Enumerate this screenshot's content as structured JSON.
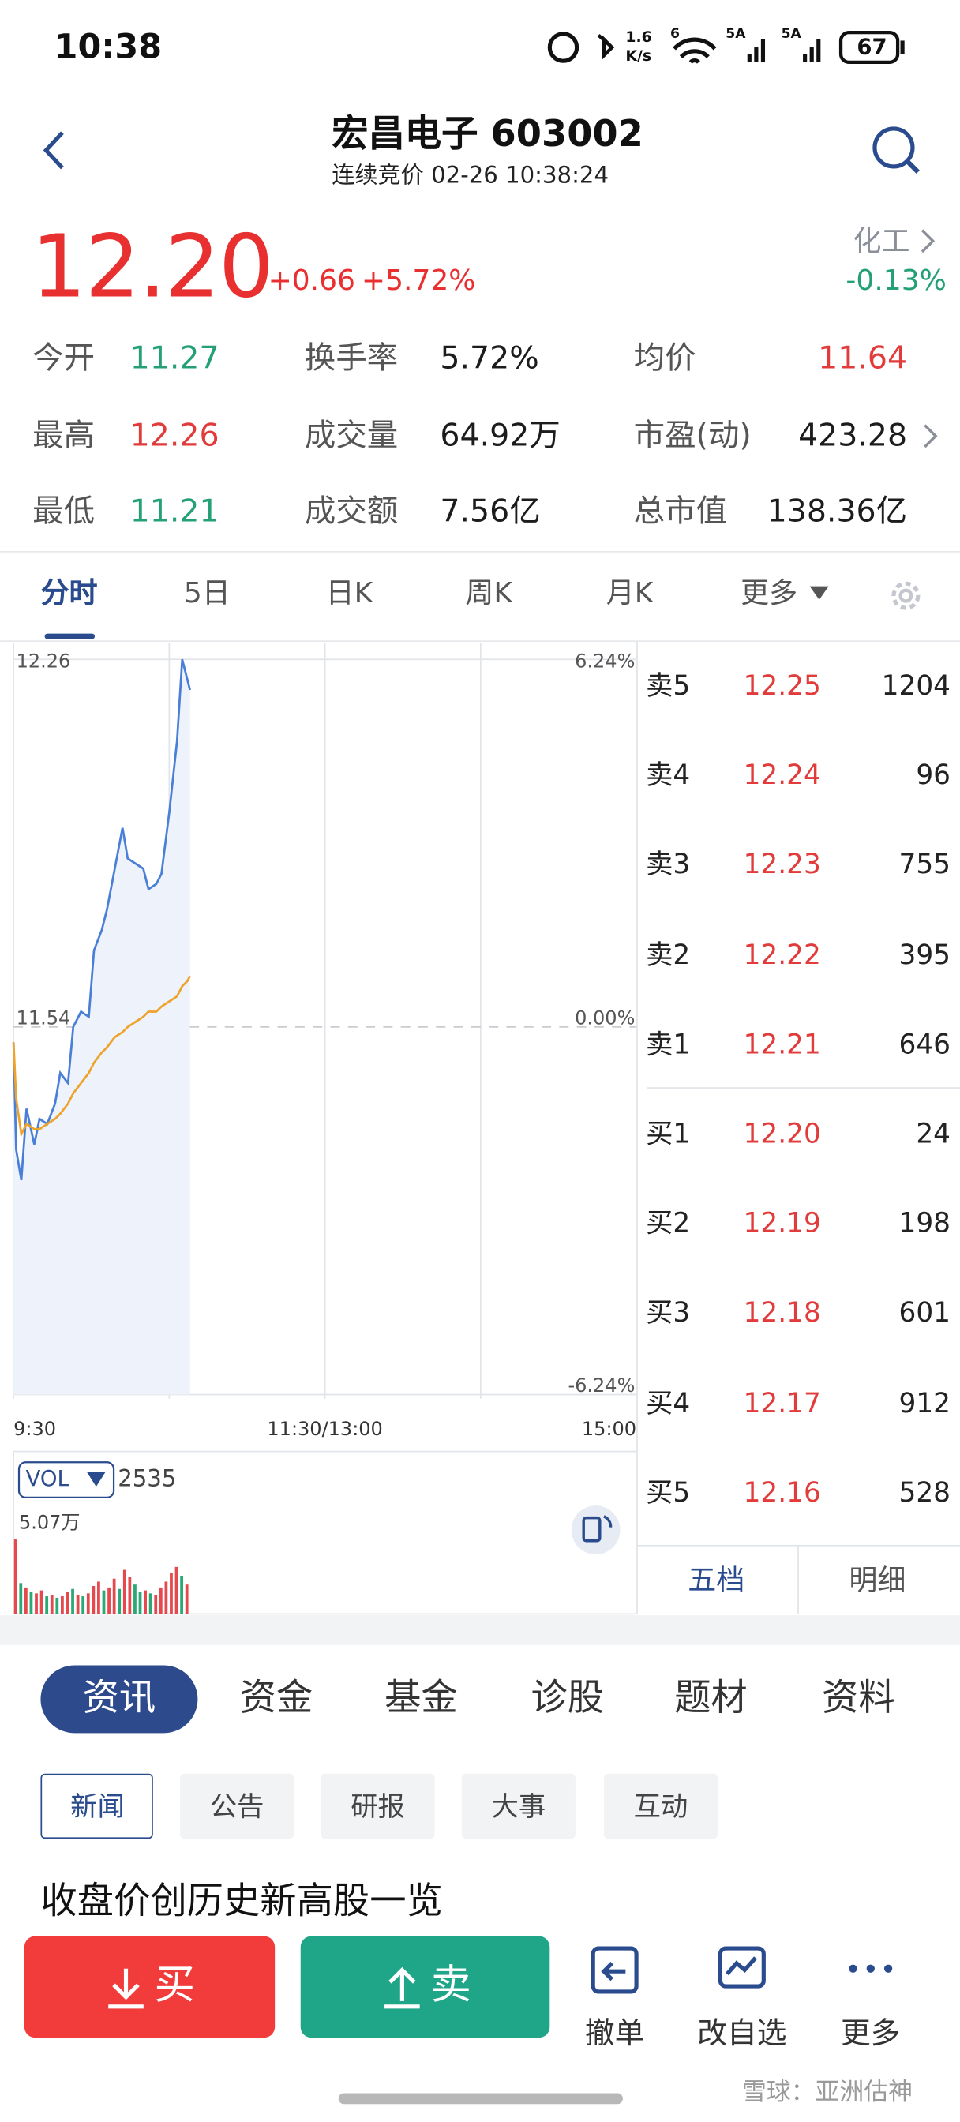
{
  "status_bar": {
    "time": "10:38",
    "net_speed": "1.6",
    "net_unit": "K/s",
    "wifi_label": "6",
    "sim1_label": "5A",
    "sim2_label": "5A",
    "battery": "67"
  },
  "header": {
    "title": "宏昌电子 603002",
    "subtitle": "连续竞价 02-26 10:38:24"
  },
  "quote": {
    "price": "12.20",
    "change": "+0.66",
    "change_pct": "+5.72%",
    "sector": "化工",
    "sector_change": "-0.13%"
  },
  "stats": [
    {
      "label": "今开",
      "value": "11.27",
      "color": "#23a078"
    },
    {
      "label": "换手率",
      "value": "5.72%",
      "color": "#1c1c1c"
    },
    {
      "label": "均价",
      "value": "11.64",
      "color": "#e23b3b"
    },
    {
      "label": "最高",
      "value": "12.26",
      "color": "#e23b3b"
    },
    {
      "label": "成交量",
      "value": "64.92万",
      "color": "#1c1c1c"
    },
    {
      "label": "市盈(动)",
      "value": "423.28",
      "color": "#1c1c1c"
    },
    {
      "label": "最低",
      "value": "11.21",
      "color": "#23a078"
    },
    {
      "label": "成交额",
      "value": "7.56亿",
      "color": "#1c1c1c"
    },
    {
      "label": "总市值",
      "value": "138.36亿",
      "color": "#1c1c1c"
    }
  ],
  "tabs": [
    "分时",
    "5日",
    "日K",
    "周K",
    "月K",
    "更多"
  ],
  "chart_data": [
    {
      "type": "line",
      "x": [
        0,
        1,
        3,
        5,
        8,
        10,
        13,
        16,
        18,
        21,
        23,
        26,
        29,
        31,
        34,
        36,
        39,
        42,
        44,
        47,
        50,
        52,
        55,
        57,
        60,
        63,
        65,
        67,
        68
      ],
      "series": [
        {
          "color": "#4a7fd8",
          "fill": "#eef2fb",
          "values": [
            11.51,
            11.3,
            11.24,
            11.38,
            11.31,
            11.36,
            11.35,
            11.39,
            11.45,
            11.43,
            11.54,
            11.57,
            11.56,
            11.69,
            11.73,
            11.77,
            11.85,
            11.93,
            11.87,
            11.86,
            11.85,
            11.81,
            11.82,
            11.84,
            11.96,
            12.1,
            12.26,
            12.22,
            12.2
          ]
        },
        {
          "color": "#eda32c",
          "values": [
            11.51,
            11.4,
            11.33,
            11.35,
            11.34,
            11.34,
            11.35,
            11.36,
            11.37,
            11.39,
            11.41,
            11.43,
            11.45,
            11.47,
            11.49,
            11.5,
            11.52,
            11.53,
            11.54,
            11.55,
            11.56,
            11.57,
            11.57,
            11.58,
            11.59,
            11.6,
            11.62,
            11.63,
            11.64
          ]
        }
      ],
      "xlim": [
        0,
        240
      ],
      "xticks": [
        {
          "value": 0,
          "label": "9:30"
        },
        {
          "value": 120,
          "label": "11:30/13:00"
        },
        {
          "value": 240,
          "label": "15:00"
        }
      ],
      "xgrid": [
        60,
        120,
        180
      ],
      "ylim": [
        10.82,
        12.26
      ],
      "yticks": [
        12.26,
        11.54,
        10.82
      ],
      "y2lim": [
        -6.24,
        6.24
      ],
      "y2ticks": [
        {
          "value": 6.24,
          "label": "6.24%"
        },
        {
          "value": 0,
          "label": "0.00%"
        },
        {
          "value": -6.24,
          "label": "-6.24%"
        }
      ]
    },
    {
      "type": "bar",
      "label": "VOL",
      "current_volume": 2535,
      "x": [
        0,
        2,
        4,
        6,
        8,
        10,
        12,
        14,
        16,
        18,
        20,
        22,
        24,
        26,
        28,
        30,
        32,
        34,
        36,
        38,
        40,
        42,
        44,
        46,
        48,
        50,
        52,
        54,
        56,
        58,
        60,
        62,
        64,
        66
      ],
      "values": [
        50700,
        21000,
        18000,
        15000,
        14000,
        16000,
        12000,
        13000,
        11000,
        12000,
        15000,
        17000,
        13000,
        12000,
        14000,
        19000,
        22000,
        16000,
        18000,
        24000,
        17000,
        30000,
        25000,
        20000,
        15000,
        16000,
        14000,
        13000,
        18000,
        22000,
        28000,
        32000,
        26000,
        20000
      ],
      "colors": [
        "#e5484d",
        "#2aa876",
        "#e5484d",
        "#2aa876",
        "#e5484d",
        "#e5484d",
        "#2aa876",
        "#e5484d",
        "#2aa876",
        "#e5484d",
        "#e5484d",
        "#2aa876",
        "#e5484d",
        "#2aa876",
        "#e5484d",
        "#e5484d",
        "#e5484d",
        "#2aa876",
        "#e5484d",
        "#e5484d",
        "#2aa876",
        "#e5484d",
        "#e5484d",
        "#2aa876",
        "#2aa876",
        "#e5484d",
        "#2aa876",
        "#e5484d",
        "#e5484d",
        "#e5484d",
        "#e5484d",
        "#e5484d",
        "#2aa876",
        "#e5484d"
      ],
      "xlim": [
        0,
        240
      ],
      "ylim": [
        0,
        50700
      ],
      "yticks": [
        {
          "value": 50700,
          "label": "5.07万"
        }
      ]
    }
  ],
  "order_book": {
    "asks": [
      {
        "label": "卖5",
        "price": "12.25",
        "volume": "1204"
      },
      {
        "label": "卖4",
        "price": "12.24",
        "volume": "96"
      },
      {
        "label": "卖3",
        "price": "12.23",
        "volume": "755"
      },
      {
        "label": "卖2",
        "price": "12.22",
        "volume": "395"
      },
      {
        "label": "卖1",
        "price": "12.21",
        "volume": "646"
      }
    ],
    "bids": [
      {
        "label": "买1",
        "price": "12.20",
        "volume": "24"
      },
      {
        "label": "买2",
        "price": "12.19",
        "volume": "198"
      },
      {
        "label": "买3",
        "price": "12.18",
        "volume": "601"
      },
      {
        "label": "买4",
        "price": "12.17",
        "volume": "912"
      },
      {
        "label": "买5",
        "price": "12.16",
        "volume": "528"
      }
    ],
    "tabs": [
      "五档",
      "明细"
    ]
  },
  "info_tabs": [
    "资讯",
    "资金",
    "基金",
    "诊股",
    "题材",
    "资料"
  ],
  "sub_tabs": [
    "新闻",
    "公告",
    "研报",
    "大事",
    "互动"
  ],
  "headline": "收盘价创历史新高股一览",
  "bottom_bar": {
    "buy": "买",
    "sell": "卖",
    "actions": [
      "撤单",
      "改自选",
      "更多"
    ]
  },
  "watermark": "雪球：亚洲估神"
}
